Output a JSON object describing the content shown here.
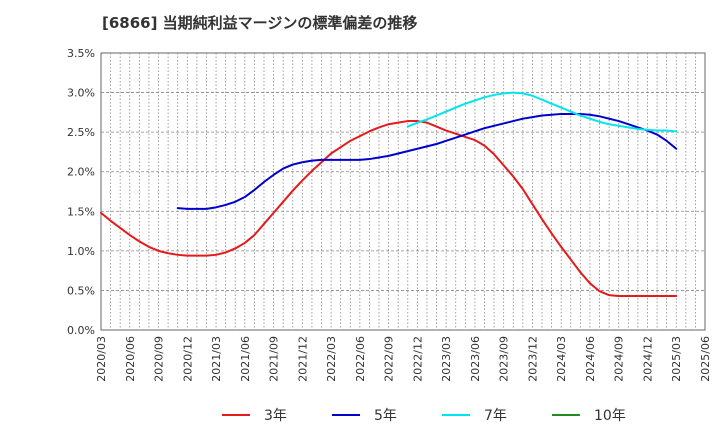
{
  "chart_data": {
    "type": "line",
    "title": "[6866]  当期純利益マージンの標準偏差の推移",
    "xlabel": "",
    "ylabel": "",
    "ylim": [
      0,
      3.5
    ],
    "y_ticks": [
      "0.0%",
      "0.5%",
      "1.0%",
      "1.5%",
      "2.0%",
      "2.5%",
      "3.0%",
      "3.5%"
    ],
    "x_ticks": [
      "2020/03",
      "2020/06",
      "2020/09",
      "2020/12",
      "2021/03",
      "2021/06",
      "2021/09",
      "2021/12",
      "2022/03",
      "2022/06",
      "2022/09",
      "2022/12",
      "2023/03",
      "2023/06",
      "2023/09",
      "2023/12",
      "2024/03",
      "2024/06",
      "2024/09",
      "2024/12",
      "2025/03",
      "2025/06"
    ],
    "grid": true,
    "legend_position": "bottom",
    "series": [
      {
        "name": "3年",
        "color": "#e41a1c",
        "points": [
          [
            "2020/03",
            1.48
          ],
          [
            "2020/04",
            1.38
          ],
          [
            "2020/05",
            1.29
          ],
          [
            "2020/06",
            1.2
          ],
          [
            "2020/07",
            1.12
          ],
          [
            "2020/08",
            1.05
          ],
          [
            "2020/09",
            1.0
          ],
          [
            "2020/10",
            0.97
          ],
          [
            "2020/11",
            0.95
          ],
          [
            "2020/12",
            0.94
          ],
          [
            "2021/01",
            0.94
          ],
          [
            "2021/02",
            0.94
          ],
          [
            "2021/03",
            0.95
          ],
          [
            "2021/04",
            0.98
          ],
          [
            "2021/05",
            1.03
          ],
          [
            "2021/06",
            1.1
          ],
          [
            "2021/07",
            1.2
          ],
          [
            "2021/08",
            1.34
          ],
          [
            "2021/09",
            1.48
          ],
          [
            "2021/10",
            1.62
          ],
          [
            "2021/11",
            1.76
          ],
          [
            "2021/12",
            1.89
          ],
          [
            "2022/01",
            2.01
          ],
          [
            "2022/02",
            2.12
          ],
          [
            "2022/03",
            2.23
          ],
          [
            "2022/04",
            2.31
          ],
          [
            "2022/05",
            2.39
          ],
          [
            "2022/06",
            2.45
          ],
          [
            "2022/07",
            2.51
          ],
          [
            "2022/08",
            2.56
          ],
          [
            "2022/09",
            2.6
          ],
          [
            "2022/10",
            2.62
          ],
          [
            "2022/11",
            2.64
          ],
          [
            "2022/12",
            2.64
          ],
          [
            "2023/01",
            2.62
          ],
          [
            "2023/02",
            2.57
          ],
          [
            "2023/03",
            2.52
          ],
          [
            "2023/04",
            2.48
          ],
          [
            "2023/05",
            2.44
          ],
          [
            "2023/06",
            2.4
          ],
          [
            "2023/07",
            2.33
          ],
          [
            "2023/08",
            2.22
          ],
          [
            "2023/09",
            2.08
          ],
          [
            "2023/10",
            1.94
          ],
          [
            "2023/11",
            1.78
          ],
          [
            "2023/12",
            1.59
          ],
          [
            "2024/01",
            1.4
          ],
          [
            "2024/02",
            1.22
          ],
          [
            "2024/03",
            1.05
          ],
          [
            "2024/04",
            0.89
          ],
          [
            "2024/05",
            0.73
          ],
          [
            "2024/06",
            0.59
          ],
          [
            "2024/07",
            0.49
          ],
          [
            "2024/08",
            0.44
          ],
          [
            "2024/09",
            0.43
          ],
          [
            "2024/10",
            0.43
          ],
          [
            "2024/11",
            0.43
          ],
          [
            "2024/12",
            0.43
          ],
          [
            "2025/01",
            0.43
          ],
          [
            "2025/02",
            0.43
          ],
          [
            "2025/03",
            0.43
          ]
        ]
      },
      {
        "name": "5年",
        "color": "#0000cd",
        "points": [
          [
            "2020/11",
            1.54
          ],
          [
            "2020/12",
            1.53
          ],
          [
            "2021/01",
            1.53
          ],
          [
            "2021/02",
            1.53
          ],
          [
            "2021/03",
            1.55
          ],
          [
            "2021/04",
            1.58
          ],
          [
            "2021/05",
            1.62
          ],
          [
            "2021/06",
            1.68
          ],
          [
            "2021/07",
            1.77
          ],
          [
            "2021/08",
            1.87
          ],
          [
            "2021/09",
            1.96
          ],
          [
            "2021/10",
            2.04
          ],
          [
            "2021/11",
            2.09
          ],
          [
            "2021/12",
            2.12
          ],
          [
            "2022/01",
            2.14
          ],
          [
            "2022/02",
            2.15
          ],
          [
            "2022/03",
            2.15
          ],
          [
            "2022/04",
            2.15
          ],
          [
            "2022/05",
            2.15
          ],
          [
            "2022/06",
            2.15
          ],
          [
            "2022/07",
            2.16
          ],
          [
            "2022/08",
            2.18
          ],
          [
            "2022/09",
            2.2
          ],
          [
            "2022/10",
            2.23
          ],
          [
            "2022/11",
            2.26
          ],
          [
            "2022/12",
            2.29
          ],
          [
            "2023/01",
            2.32
          ],
          [
            "2023/02",
            2.35
          ],
          [
            "2023/03",
            2.39
          ],
          [
            "2023/04",
            2.43
          ],
          [
            "2023/05",
            2.47
          ],
          [
            "2023/06",
            2.51
          ],
          [
            "2023/07",
            2.55
          ],
          [
            "2023/08",
            2.58
          ],
          [
            "2023/09",
            2.61
          ],
          [
            "2023/10",
            2.64
          ],
          [
            "2023/11",
            2.67
          ],
          [
            "2023/12",
            2.69
          ],
          [
            "2024/01",
            2.71
          ],
          [
            "2024/02",
            2.72
          ],
          [
            "2024/03",
            2.73
          ],
          [
            "2024/04",
            2.73
          ],
          [
            "2024/05",
            2.73
          ],
          [
            "2024/06",
            2.72
          ],
          [
            "2024/07",
            2.7
          ],
          [
            "2024/08",
            2.67
          ],
          [
            "2024/09",
            2.64
          ],
          [
            "2024/10",
            2.6
          ],
          [
            "2024/11",
            2.56
          ],
          [
            "2024/12",
            2.52
          ],
          [
            "2025/01",
            2.47
          ],
          [
            "2025/02",
            2.39
          ],
          [
            "2025/03",
            2.29
          ]
        ]
      },
      {
        "name": "7年",
        "color": "#00e5ee",
        "points": [
          [
            "2022/11",
            2.57
          ],
          [
            "2022/12",
            2.62
          ],
          [
            "2023/01",
            2.66
          ],
          [
            "2023/02",
            2.71
          ],
          [
            "2023/03",
            2.76
          ],
          [
            "2023/04",
            2.81
          ],
          [
            "2023/05",
            2.86
          ],
          [
            "2023/06",
            2.9
          ],
          [
            "2023/07",
            2.94
          ],
          [
            "2023/08",
            2.97
          ],
          [
            "2023/09",
            2.99
          ],
          [
            "2023/10",
            3.0
          ],
          [
            "2023/11",
            2.99
          ],
          [
            "2023/12",
            2.96
          ],
          [
            "2024/01",
            2.91
          ],
          [
            "2024/02",
            2.86
          ],
          [
            "2024/03",
            2.81
          ],
          [
            "2024/04",
            2.76
          ],
          [
            "2024/05",
            2.71
          ],
          [
            "2024/06",
            2.67
          ],
          [
            "2024/07",
            2.63
          ],
          [
            "2024/08",
            2.6
          ],
          [
            "2024/09",
            2.58
          ],
          [
            "2024/10",
            2.56
          ],
          [
            "2024/11",
            2.54
          ],
          [
            "2024/12",
            2.53
          ],
          [
            "2025/01",
            2.52
          ],
          [
            "2025/02",
            2.52
          ],
          [
            "2025/03",
            2.51
          ]
        ]
      },
      {
        "name": "10年",
        "color": "#228b22",
        "points": []
      }
    ]
  }
}
